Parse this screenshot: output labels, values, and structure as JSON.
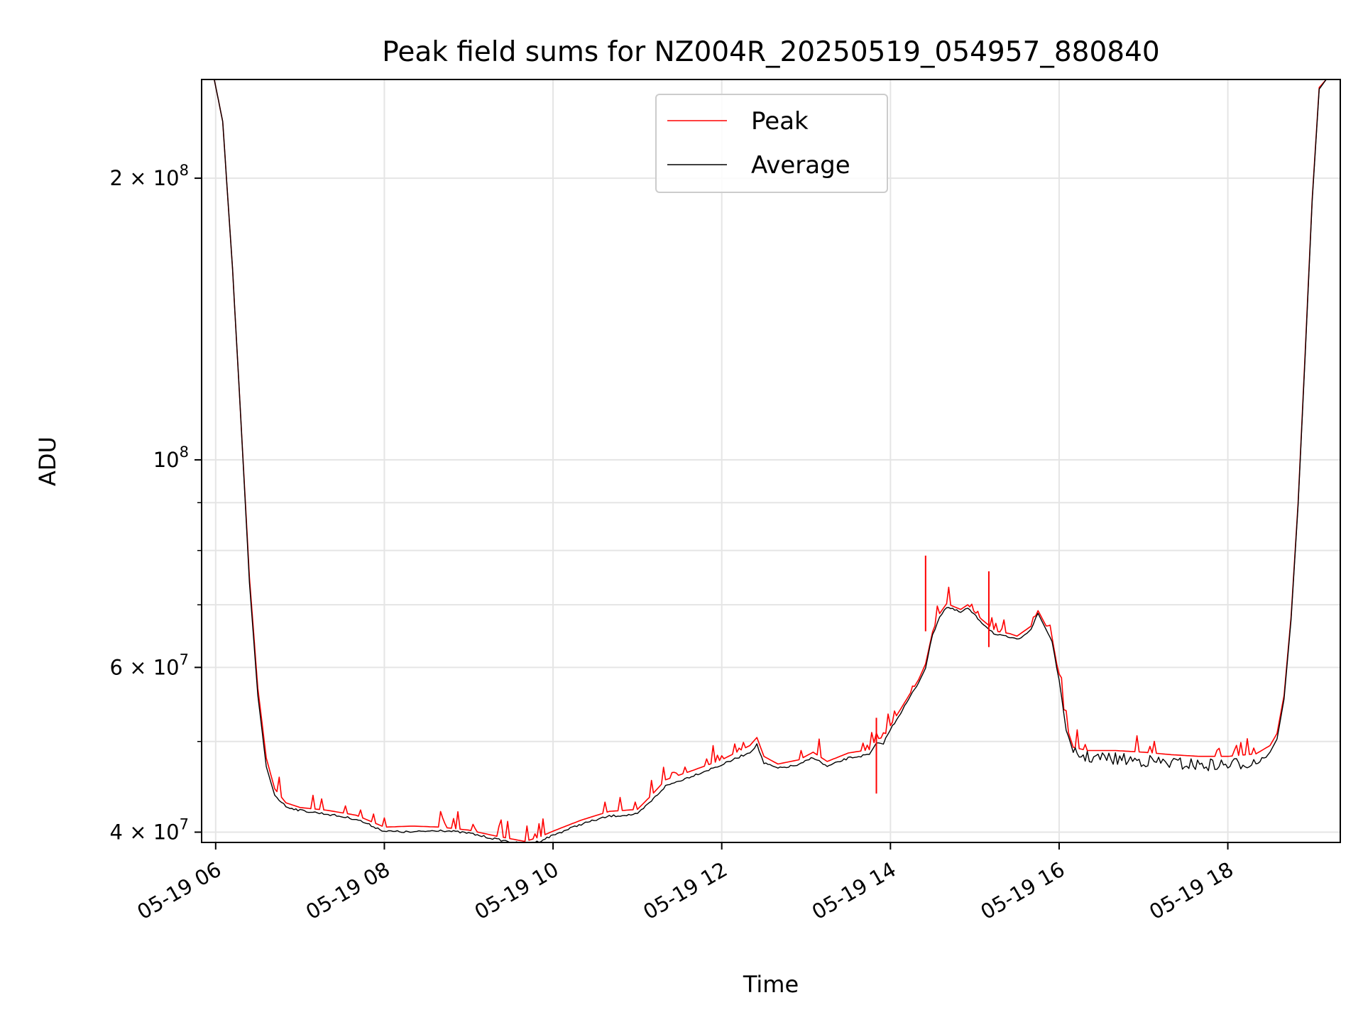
{
  "chart_data": {
    "type": "line",
    "title": "Peak field sums for NZ004R_20250519_054957_880840",
    "xlabel": "Time",
    "ylabel": "ADU",
    "x_scale": "time",
    "y_scale": "log",
    "xlim": [
      "2025-05-19 05:50",
      "2025-05-19 19:20"
    ],
    "ylim": [
      39000000,
      255000000
    ],
    "x_ticks": [
      "05-19 06",
      "05-19 08",
      "05-19 10",
      "05-19 12",
      "05-19 14",
      "05-19 16",
      "05-19 18"
    ],
    "x_tick_values": [
      "2025-05-19 06:00",
      "2025-05-19 08:00",
      "2025-05-19 10:00",
      "2025-05-19 12:00",
      "2025-05-19 14:00",
      "2025-05-19 16:00",
      "2025-05-19 18:00"
    ],
    "y_ticks": [
      {
        "value": 40000000,
        "mantissa": "4",
        "exponent": "7"
      },
      {
        "value": 60000000,
        "mantissa": "6",
        "exponent": "7"
      },
      {
        "value": 100000000,
        "mantissa": "",
        "exponent": "8"
      },
      {
        "value": 200000000,
        "mantissa": "2",
        "exponent": "8"
      }
    ],
    "y_minor_ticks": [
      50000000,
      70000000,
      80000000,
      90000000
    ],
    "grid": true,
    "legend": "upper-center",
    "series": [
      {
        "name": "Peak",
        "color": "#ff0000",
        "x": [
          "2025-05-19 05:59",
          "2025-05-19 06:05",
          "2025-05-19 06:12",
          "2025-05-19 06:18",
          "2025-05-19 06:24",
          "2025-05-19 06:30",
          "2025-05-19 06:36",
          "2025-05-19 06:42",
          "2025-05-19 06:50",
          "2025-05-19 07:00",
          "2025-05-19 07:20",
          "2025-05-19 07:40",
          "2025-05-19 08:00",
          "2025-05-19 08:20",
          "2025-05-19 08:40",
          "2025-05-19 09:00",
          "2025-05-19 09:20",
          "2025-05-19 09:40",
          "2025-05-19 09:50",
          "2025-05-19 10:00",
          "2025-05-19 10:20",
          "2025-05-19 10:40",
          "2025-05-19 11:00",
          "2025-05-19 11:10",
          "2025-05-19 11:20",
          "2025-05-19 11:40",
          "2025-05-19 12:00",
          "2025-05-19 12:20",
          "2025-05-19 12:25",
          "2025-05-19 12:30",
          "2025-05-19 12:40",
          "2025-05-19 12:55",
          "2025-05-19 13:05",
          "2025-05-19 13:15",
          "2025-05-19 13:30",
          "2025-05-19 13:45",
          "2025-05-19 13:50",
          "2025-05-19 13:55",
          "2025-05-19 14:00",
          "2025-05-19 14:10",
          "2025-05-19 14:20",
          "2025-05-19 14:25",
          "2025-05-19 14:30",
          "2025-05-19 14:35",
          "2025-05-19 14:40",
          "2025-05-19 14:50",
          "2025-05-19 14:55",
          "2025-05-19 15:05",
          "2025-05-19 15:15",
          "2025-05-19 15:25",
          "2025-05-19 15:30",
          "2025-05-19 15:40",
          "2025-05-19 15:45",
          "2025-05-19 15:55",
          "2025-05-19 16:00",
          "2025-05-19 16:05",
          "2025-05-19 16:10",
          "2025-05-19 16:20",
          "2025-05-19 16:40",
          "2025-05-19 17:00",
          "2025-05-19 17:20",
          "2025-05-19 17:40",
          "2025-05-19 18:00",
          "2025-05-19 18:20",
          "2025-05-19 18:30",
          "2025-05-19 18:35",
          "2025-05-19 18:40",
          "2025-05-19 18:45",
          "2025-05-19 18:50",
          "2025-05-19 18:55",
          "2025-05-19 19:00",
          "2025-05-19 19:05",
          "2025-05-19 19:10",
          "2025-05-19 19:15"
        ],
        "values": [
          255000000,
          230000000,
          160000000,
          110000000,
          75000000,
          57000000,
          48000000,
          44500000,
          43000000,
          42500000,
          42200000,
          41700000,
          40500000,
          40600000,
          40500000,
          40200000,
          39600000,
          39100000,
          39500000,
          40100000,
          41200000,
          42100000,
          42300000,
          43800000,
          45500000,
          46600000,
          47800000,
          49500000,
          50500000,
          48200000,
          47300000,
          47800000,
          48700000,
          47600000,
          48600000,
          49000000,
          50300000,
          50500000,
          52000000,
          55000000,
          58200000,
          60500000,
          65500000,
          68500000,
          70200000,
          69200000,
          70000000,
          67500000,
          65600000,
          65200000,
          64800000,
          66400000,
          69000000,
          64600000,
          58500000,
          52000000,
          49300000,
          48900000,
          48900000,
          48700000,
          48400000,
          48200000,
          48200000,
          48500000,
          49500000,
          51000000,
          56000000,
          68000000,
          90000000,
          130000000,
          190000000,
          250000000,
          255000000,
          255000000
        ]
      },
      {
        "name": "Average",
        "color": "#000000",
        "x": [
          "2025-05-19 05:59",
          "2025-05-19 06:05",
          "2025-05-19 06:12",
          "2025-05-19 06:18",
          "2025-05-19 06:24",
          "2025-05-19 06:30",
          "2025-05-19 06:36",
          "2025-05-19 06:42",
          "2025-05-19 06:50",
          "2025-05-19 07:00",
          "2025-05-19 07:20",
          "2025-05-19 07:40",
          "2025-05-19 08:00",
          "2025-05-19 08:20",
          "2025-05-19 08:40",
          "2025-05-19 09:00",
          "2025-05-19 09:20",
          "2025-05-19 09:40",
          "2025-05-19 09:50",
          "2025-05-19 10:00",
          "2025-05-19 10:20",
          "2025-05-19 10:40",
          "2025-05-19 11:00",
          "2025-05-19 11:10",
          "2025-05-19 11:20",
          "2025-05-19 11:40",
          "2025-05-19 12:00",
          "2025-05-19 12:20",
          "2025-05-19 12:25",
          "2025-05-19 12:30",
          "2025-05-19 12:40",
          "2025-05-19 12:55",
          "2025-05-19 13:05",
          "2025-05-19 13:15",
          "2025-05-19 13:30",
          "2025-05-19 13:45",
          "2025-05-19 13:50",
          "2025-05-19 13:55",
          "2025-05-19 14:00",
          "2025-05-19 14:10",
          "2025-05-19 14:20",
          "2025-05-19 14:25",
          "2025-05-19 14:30",
          "2025-05-19 14:35",
          "2025-05-19 14:40",
          "2025-05-19 14:50",
          "2025-05-19 14:55",
          "2025-05-19 15:05",
          "2025-05-19 15:15",
          "2025-05-19 15:25",
          "2025-05-19 15:30",
          "2025-05-19 15:40",
          "2025-05-19 15:45",
          "2025-05-19 15:55",
          "2025-05-19 16:00",
          "2025-05-19 16:05",
          "2025-05-19 16:10",
          "2025-05-19 16:20",
          "2025-05-19 16:40",
          "2025-05-19 17:00",
          "2025-05-19 17:20",
          "2025-05-19 17:40",
          "2025-05-19 18:00",
          "2025-05-19 18:20",
          "2025-05-19 18:30",
          "2025-05-19 18:35",
          "2025-05-19 18:40",
          "2025-05-19 18:45",
          "2025-05-19 18:50",
          "2025-05-19 18:55",
          "2025-05-19 19:00",
          "2025-05-19 19:05",
          "2025-05-19 19:10",
          "2025-05-19 19:15"
        ],
        "values": [
          255000000,
          230000000,
          160000000,
          110000000,
          74000000,
          56000000,
          47000000,
          43800000,
          42600000,
          42200000,
          41800000,
          41300000,
          40100000,
          40000000,
          40200000,
          39900000,
          39300000,
          38800000,
          39100000,
          39700000,
          40800000,
          41600000,
          41800000,
          43200000,
          44800000,
          46000000,
          47200000,
          48700000,
          49600000,
          47400000,
          46800000,
          47200000,
          48100000,
          47000000,
          48000000,
          48400000,
          49700000,
          49800000,
          51500000,
          54500000,
          57800000,
          60000000,
          65000000,
          68000000,
          69600000,
          68700000,
          69400000,
          67000000,
          65000000,
          64600000,
          64200000,
          65900000,
          68500000,
          64000000,
          58000000,
          51500000,
          48600000,
          48100000,
          47900000,
          47700000,
          47400000,
          47200000,
          47200000,
          47600000,
          48700000,
          50300000,
          55500000,
          67500000,
          89500000,
          129000000,
          189000000,
          249000000,
          255000000,
          255000000
        ]
      }
    ]
  }
}
